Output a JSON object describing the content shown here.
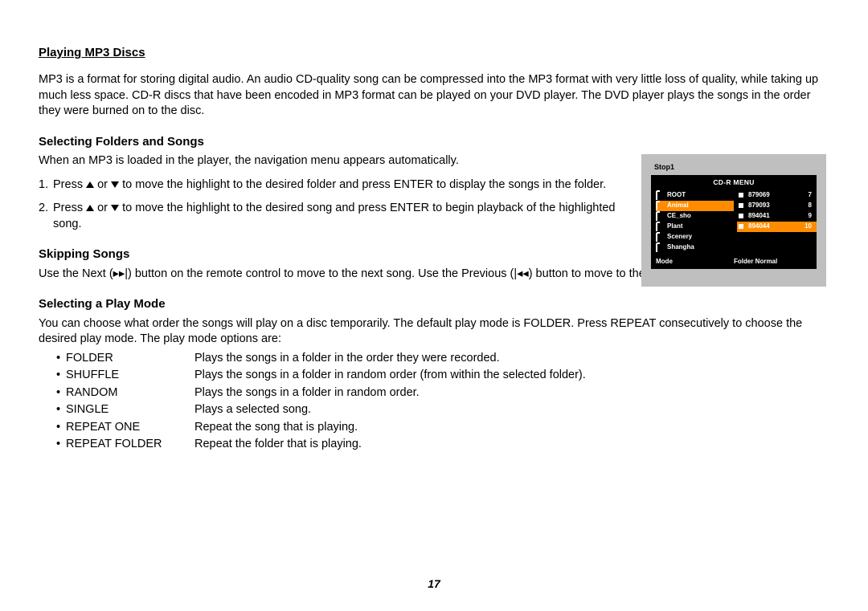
{
  "page_number": "17",
  "colors": {
    "text": "#000000",
    "background": "#ffffff",
    "panel_bg": "#bfbfbf",
    "menu_bg": "#000000",
    "menu_fg": "#ffffff",
    "highlight": "#ff8c00"
  },
  "heading_main": "Playing MP3 Discs",
  "intro": "MP3 is a format for storing digital audio. An audio CD-quality song can be compressed into the MP3 format with very little loss of quality, while taking up much less space. CD-R discs that have been encoded in MP3 format can be played on your DVD player. The DVD player plays the songs in the order they were burned on to the disc.",
  "sec_folders": {
    "title": "Selecting Folders and Songs",
    "lead": "When an MP3 is loaded in the player, the navigation menu appears automatically.",
    "step1_pre": "Press ",
    "step1_mid": " or ",
    "step1_post": " to move the highlight to the desired folder and press ENTER to display the songs in the folder.",
    "step2_pre": "Press ",
    "step2_mid": " or ",
    "step2_post": " to move the highlight to the desired song and press ENTER to begin playback of the highlighted song."
  },
  "sec_skip": {
    "title": "Skipping Songs",
    "text_pre": "Use the Next (",
    "text_mid": ") button on the remote control to move to the next song. Use the Previous (",
    "text_post": ") button to move to the previous song.",
    "next_glyph": "▸▸|",
    "prev_glyph": "|◂◂"
  },
  "sec_mode": {
    "title": "Selecting a Play Mode",
    "lead": "You can choose what order the songs will play on a disc temporarily. The default play mode is FOLDER. Press REPEAT consecutively to choose the desired play mode. The play mode options are:",
    "modes": [
      {
        "name": "FOLDER",
        "desc": "Plays the songs in a folder in the order they were recorded."
      },
      {
        "name": "SHUFFLE",
        "desc": "Plays the songs in a folder in random order (from within the selected folder)."
      },
      {
        "name": "RANDOM",
        "desc": "Plays the songs in a folder in random order."
      },
      {
        "name": "SINGLE",
        "desc": "Plays a selected song."
      },
      {
        "name": "REPEAT ONE",
        "desc": "Repeat the song that is playing."
      },
      {
        "name": "REPEAT FOLDER",
        "desc": "Repeat the folder that is playing."
      }
    ]
  },
  "menu": {
    "stop": "Stop1",
    "title": "CD-R MENU",
    "folders": [
      {
        "label": "ROOT",
        "hl": false
      },
      {
        "label": "Animal",
        "hl": true
      },
      {
        "label": "CE_sho",
        "hl": false
      },
      {
        "label": "Plant",
        "hl": false
      },
      {
        "label": "Scenery",
        "hl": false
      },
      {
        "label": "Shangha",
        "hl": false
      }
    ],
    "files": [
      {
        "label": "879069",
        "num": "7",
        "hl": false
      },
      {
        "label": "879093",
        "num": "8",
        "hl": false
      },
      {
        "label": "894041",
        "num": "9",
        "hl": false
      },
      {
        "label": "894044",
        "num": "10",
        "hl": true
      }
    ],
    "mode_label": "Mode",
    "mode_value": "Folder Normal"
  }
}
